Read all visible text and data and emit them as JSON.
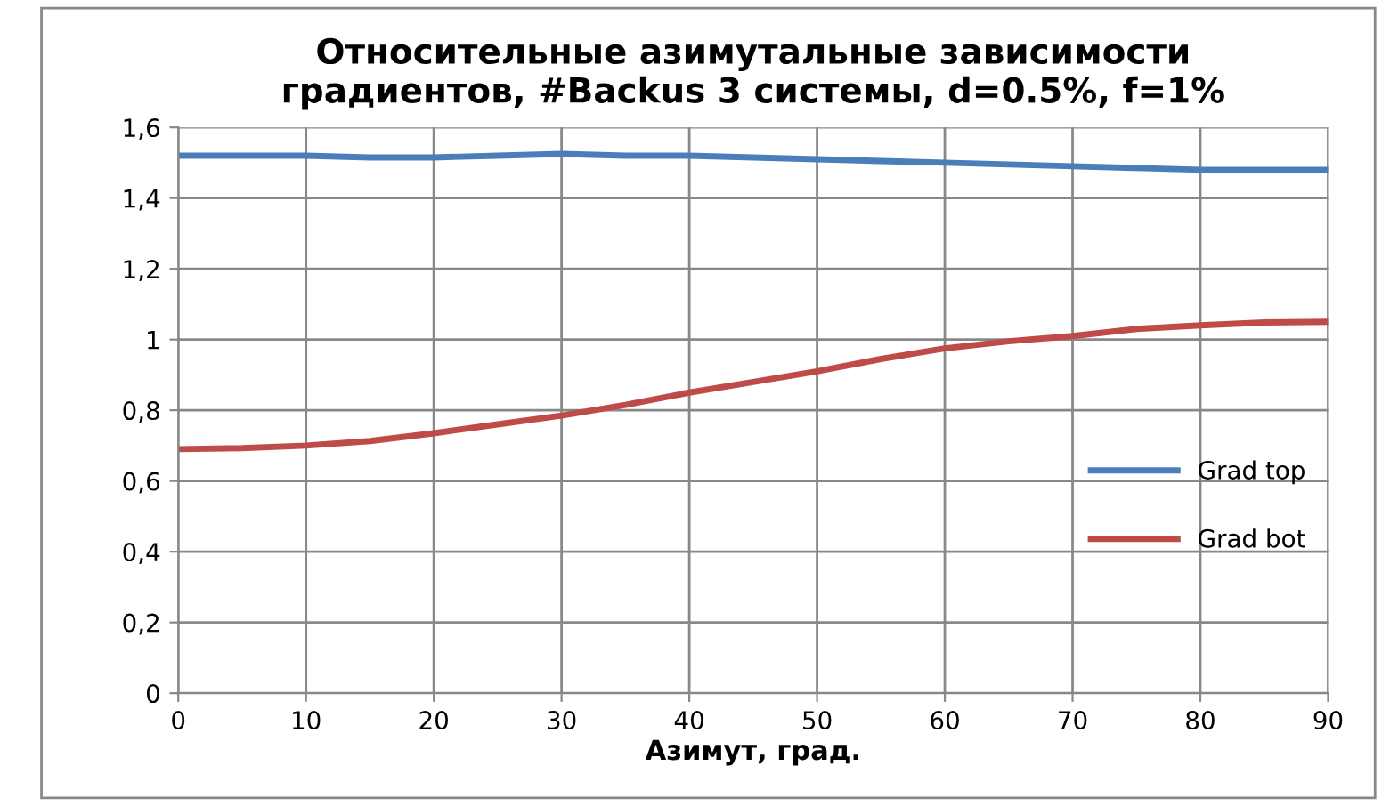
{
  "chart_data": {
    "type": "line",
    "title": "Относительные азимутальные зависимости\nградиентов, #Backus 3 системы, d=0.5%, f=1%",
    "xlabel": "Азимут, град.",
    "x": [
      0,
      5,
      10,
      15,
      20,
      25,
      30,
      35,
      40,
      45,
      50,
      55,
      60,
      65,
      70,
      75,
      80,
      85,
      90
    ],
    "series": [
      {
        "name": "Grad top",
        "color": "#4a7ebb",
        "values": [
          1.52,
          1.52,
          1.52,
          1.515,
          1.515,
          1.52,
          1.525,
          1.52,
          1.52,
          1.515,
          1.51,
          1.505,
          1.5,
          1.495,
          1.49,
          1.485,
          1.48,
          1.48,
          1.48
        ]
      },
      {
        "name": "Grad bot",
        "color": "#be4b48",
        "values": [
          0.69,
          0.693,
          0.7,
          0.713,
          0.735,
          0.76,
          0.785,
          0.815,
          0.85,
          0.88,
          0.91,
          0.945,
          0.975,
          0.995,
          1.01,
          1.03,
          1.04,
          1.048,
          1.05
        ]
      }
    ],
    "xlim": [
      0,
      90
    ],
    "xticks": [
      0,
      10,
      20,
      30,
      40,
      50,
      60,
      70,
      80,
      90
    ],
    "ylim": [
      0,
      1.6
    ],
    "yticks": [
      0,
      {
        "value": 0.2,
        "label": "0,2"
      },
      {
        "value": 0.4,
        "label": "0,4"
      },
      {
        "value": 0.6,
        "label": "0,6"
      },
      {
        "value": 0.8,
        "label": "0,8"
      },
      1,
      {
        "value": 1.2,
        "label": "1,2"
      },
      {
        "value": 1.4,
        "label": "1,4"
      },
      {
        "value": 1.6,
        "label": "1,6"
      }
    ],
    "grid": true,
    "legend": "right",
    "marker": "none",
    "line_style": "solid"
  }
}
